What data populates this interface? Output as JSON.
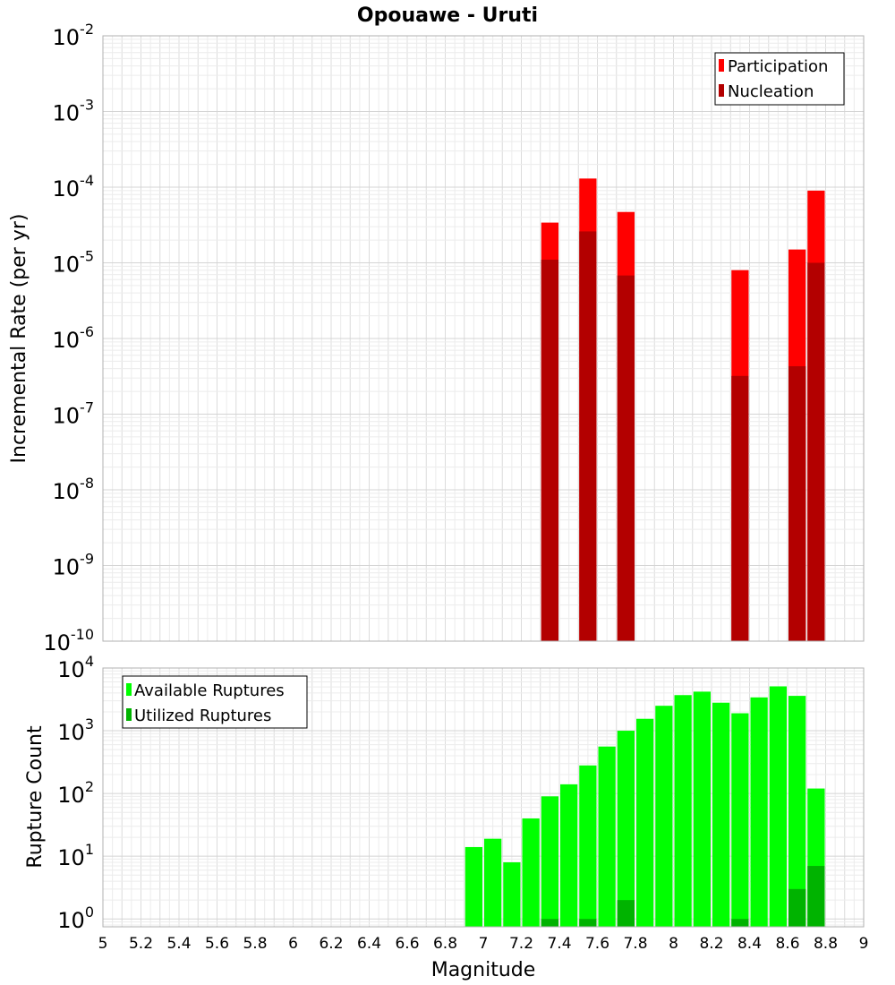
{
  "chart_data": [
    {
      "type": "bar",
      "title": "Opouawe - Uruti",
      "xlabel": "",
      "ylabel": "Incremental Rate (per yr)",
      "xlim": [
        5,
        9
      ],
      "ylim": [
        1e-10,
        0.01
      ],
      "yscale": "log",
      "ytick_exponents": [
        -10,
        -9,
        -8,
        -7,
        -6,
        -5,
        -4,
        -3,
        -2
      ],
      "grid": true,
      "legend_position": "top-right",
      "series": [
        {
          "name": "Participation",
          "color": "#ff0000",
          "x": [
            7.35,
            7.55,
            7.75,
            8.35,
            8.65,
            8.75
          ],
          "values": [
            3.4e-05,
            0.00013,
            4.7e-05,
            8e-06,
            1.5e-05,
            9e-05
          ]
        },
        {
          "name": "Nucleation",
          "color": "#b30000",
          "x": [
            7.35,
            7.55,
            7.75,
            8.35,
            8.65,
            8.75
          ],
          "values": [
            1.1e-05,
            2.6e-05,
            6.8e-06,
            3.2e-07,
            4.3e-07,
            1e-05
          ]
        }
      ]
    },
    {
      "type": "bar",
      "title": "",
      "xlabel": "Magnitude",
      "ylabel": "Rupture Count",
      "xlim": [
        5,
        9
      ],
      "ylim": [
        0.75,
        10000
      ],
      "yscale": "log",
      "ytick_exponents": [
        0,
        1,
        2,
        3,
        4
      ],
      "xticks": [
        "5",
        "5.2",
        "5.4",
        "5.6",
        "5.8",
        "6",
        "6.2",
        "6.4",
        "6.6",
        "6.8",
        "7",
        "7.2",
        "7.4",
        "7.6",
        "7.8",
        "8",
        "8.2",
        "8.4",
        "8.6",
        "8.8",
        "9"
      ],
      "grid": true,
      "legend_position": "top-left",
      "series": [
        {
          "name": "Available Ruptures",
          "color": "#00ff00",
          "x": [
            6.95,
            7.05,
            7.15,
            7.25,
            7.35,
            7.45,
            7.55,
            7.65,
            7.75,
            7.85,
            7.95,
            8.05,
            8.15,
            8.25,
            8.35,
            8.45,
            8.55,
            8.65,
            8.75
          ],
          "values": [
            14,
            19,
            8,
            40,
            90,
            140,
            280,
            560,
            1000,
            1550,
            2500,
            3700,
            4200,
            2800,
            1900,
            3400,
            5100,
            3600,
            120
          ]
        },
        {
          "name": "Utilized Ruptures",
          "color": "#00b300",
          "x": [
            7.35,
            7.55,
            7.75,
            8.35,
            8.65,
            8.75
          ],
          "values": [
            1,
            1,
            2,
            1,
            3,
            7
          ]
        }
      ]
    }
  ]
}
